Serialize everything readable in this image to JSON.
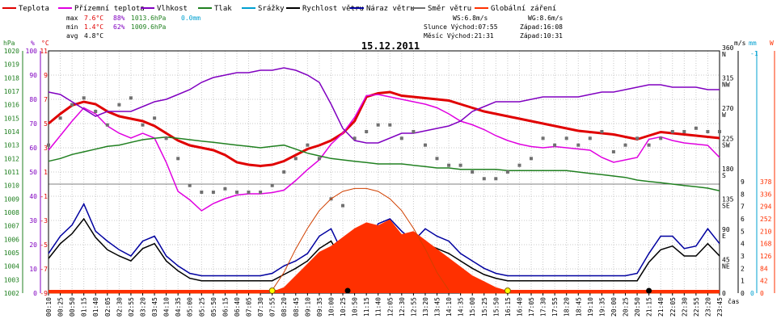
{
  "colors": {
    "teplota": "#e00000",
    "pocitova": "#e000e0",
    "vlhkost": "#8000c0",
    "tlak": "#208020",
    "srazky": "#00a0d0",
    "rychlost": "#000000",
    "naraz": "#0000a0",
    "smer": "#707070",
    "zareni": "#ff3000",
    "grid": "#c8c8c8",
    "frame": "#000000"
  },
  "legend": [
    {
      "key": "teplota",
      "label": "Teplota"
    },
    {
      "key": "pocitova",
      "label": "Přízemní teplota"
    },
    {
      "key": "vlhkost",
      "label": "Vlhkost"
    },
    {
      "key": "tlak",
      "label": "Tlak"
    },
    {
      "key": "srazky",
      "label": "Srážky"
    },
    {
      "key": "rychlost",
      "label": "Rychlost větru"
    },
    {
      "key": "naraz",
      "label": "Náraz větru"
    },
    {
      "key": "smer",
      "label": "Směr větru"
    },
    {
      "key": "zareni",
      "label": "Globální záření"
    }
  ],
  "stats": {
    "max_label": "max",
    "max_temp": "7.6°C",
    "max_hum": "88%",
    "max_press": "1013.6hPa",
    "max_rain": "0.0mm",
    "min_label": "min",
    "min_temp": "1.4°C",
    "min_hum": "62%",
    "min_press": "1009.6hPa",
    "avg_label": "avg",
    "avg_temp": "4.8°C",
    "ws": "WS:6.8m/s",
    "wg": "WG:8.6m/s",
    "slunce": "Slunce Východ:07:55",
    "slunce_zapad": "Západ:16:08",
    "mesic": "Měsíc  Východ:21:31",
    "mesic_zapad": "Západ:10:31"
  },
  "chart_data": {
    "type": "line",
    "title": "15.12.2011",
    "xlabel": "čas",
    "x_ticks": [
      "00:10",
      "00:25",
      "00:50",
      "01:15",
      "01:40",
      "02:05",
      "02:30",
      "02:55",
      "03:20",
      "03:45",
      "04:10",
      "04:35",
      "05:00",
      "05:25",
      "05:50",
      "06:15",
      "06:40",
      "07:05",
      "07:30",
      "07:55",
      "08:20",
      "08:45",
      "09:10",
      "09:35",
      "10:00",
      "10:25",
      "10:50",
      "11:15",
      "11:40",
      "12:05",
      "12:30",
      "12:55",
      "13:20",
      "13:45",
      "14:10",
      "14:35",
      "15:00",
      "15:25",
      "15:50",
      "16:15",
      "16:40",
      "17:05",
      "17:30",
      "17:55",
      "18:20",
      "18:45",
      "19:10",
      "19:35",
      "20:00",
      "20:25",
      "20:50",
      "21:15",
      "21:40",
      "22:05",
      "22:30",
      "22:55",
      "23:20",
      "23:45"
    ],
    "axes": {
      "hpa": {
        "label": "hPa",
        "range": [
          1002,
          1020
        ],
        "ticks": [
          "1002",
          "1003",
          "1004",
          "1005",
          "1006",
          "1007",
          "1008",
          "1009",
          "1010",
          "1011",
          "1012",
          "1013",
          "1014",
          "1015",
          "1016",
          "1017",
          "1018",
          "1019",
          "1020"
        ]
      },
      "pct": {
        "label": "%",
        "range": [
          0,
          100
        ],
        "ticks": [
          "0",
          "10",
          "20",
          "30",
          "40",
          "50",
          "60",
          "70",
          "80",
          "90",
          "100"
        ]
      },
      "temp": {
        "label": "°C",
        "range": [
          -9,
          11
        ],
        "ticks": [
          "-9",
          "-7",
          "-5",
          "-3",
          "-1",
          "1",
          "3",
          "5",
          "7",
          "9",
          "11"
        ]
      },
      "wind_dir": {
        "label": "m/s",
        "ticks": [
          "0",
          "45\nNE",
          "90\nE",
          "135\nSE",
          "180\nS",
          "225\nSW",
          "270\nW",
          "315\nNW",
          "360\nN"
        ]
      },
      "wind_ms": {
        "ticks": [
          "0",
          "1",
          "2",
          "3",
          "4",
          "5",
          "6",
          "7",
          "8",
          "9"
        ]
      },
      "rain": {
        "label": "mm",
        "ticks": [
          "0",
          "-1"
        ]
      },
      "solar": {
        "label": "W",
        "ticks": [
          "0",
          "42",
          "84",
          "126",
          "168",
          "210",
          "252",
          "294",
          "336",
          "378"
        ]
      }
    },
    "series": [
      {
        "key": "teplota",
        "name": "Teplota",
        "axis": "temp",
        "values": [
          5.0,
          5.8,
          6.5,
          6.8,
          6.6,
          6.0,
          5.6,
          5.4,
          5.2,
          4.8,
          4.2,
          3.6,
          3.2,
          3.0,
          2.8,
          2.4,
          1.8,
          1.6,
          1.5,
          1.6,
          1.9,
          2.4,
          2.9,
          3.2,
          3.6,
          4.2,
          5.2,
          7.2,
          7.5,
          7.6,
          7.3,
          7.2,
          7.1,
          7.0,
          6.9,
          6.6,
          6.3,
          6.0,
          5.8,
          5.6,
          5.4,
          5.2,
          5.0,
          4.8,
          4.6,
          4.4,
          4.3,
          4.2,
          4.1,
          3.9,
          3.7,
          4.0,
          4.3,
          4.2,
          4.1,
          4.0,
          3.9,
          3.8
        ]
      },
      {
        "key": "pocitova",
        "name": "Přízemní teplota",
        "axis": "temp",
        "values": [
          2.8,
          4.0,
          5.2,
          6.3,
          5.8,
          4.8,
          4.2,
          3.8,
          4.2,
          3.8,
          1.8,
          -0.6,
          -1.3,
          -2.2,
          -1.6,
          -1.2,
          -0.9,
          -0.8,
          -0.8,
          -0.7,
          -0.5,
          0.3,
          1.2,
          2.0,
          3.3,
          4.2,
          5.5,
          7.3,
          7.4,
          7.2,
          7.0,
          6.8,
          6.6,
          6.3,
          5.8,
          5.2,
          4.9,
          4.5,
          4.0,
          3.6,
          3.3,
          3.1,
          3.0,
          3.1,
          3.0,
          2.9,
          2.8,
          2.2,
          1.8,
          2.0,
          2.2,
          3.7,
          3.9,
          3.6,
          3.4,
          3.3,
          3.2,
          2.2
        ]
      },
      {
        "key": "vlhkost",
        "name": "Vlhkost",
        "axis": "pct",
        "values": [
          83,
          82,
          79,
          76,
          73,
          75,
          75,
          75,
          77,
          79,
          80,
          82,
          84,
          87,
          89,
          90,
          91,
          91,
          92,
          92,
          93,
          92,
          90,
          87,
          78,
          68,
          63,
          62,
          62,
          64,
          66,
          66,
          67,
          68,
          69,
          71,
          75,
          77,
          79,
          79,
          79,
          80,
          81,
          81,
          81,
          81,
          82,
          83,
          83,
          84,
          85,
          86,
          86,
          85,
          85,
          85,
          84,
          84
        ]
      },
      {
        "key": "tlak",
        "name": "Tlak",
        "axis": "hpa",
        "values": [
          1011.8,
          1012.0,
          1012.3,
          1012.5,
          1012.7,
          1012.9,
          1013.0,
          1013.2,
          1013.4,
          1013.5,
          1013.6,
          1013.5,
          1013.4,
          1013.3,
          1013.2,
          1013.1,
          1013.0,
          1012.9,
          1012.8,
          1012.9,
          1013.0,
          1012.7,
          1012.4,
          1012.2,
          1012.0,
          1011.9,
          1011.8,
          1011.7,
          1011.6,
          1011.6,
          1011.6,
          1011.5,
          1011.4,
          1011.3,
          1011.3,
          1011.2,
          1011.2,
          1011.2,
          1011.2,
          1011.1,
          1011.1,
          1011.1,
          1011.1,
          1011.1,
          1011.1,
          1011.0,
          1010.9,
          1010.8,
          1010.7,
          1010.6,
          1010.4,
          1010.3,
          1010.2,
          1010.1,
          1010.0,
          1009.9,
          1009.8,
          1009.6
        ]
      },
      {
        "key": "rychlost",
        "name": "Rychlost větru",
        "axis": "wind_ms",
        "values": [
          2.8,
          4.0,
          4.8,
          6.0,
          4.5,
          3.5,
          3.0,
          2.6,
          3.6,
          4.0,
          2.6,
          1.8,
          1.2,
          1.0,
          1.0,
          1.0,
          1.0,
          1.0,
          1.0,
          1.0,
          1.5,
          2.0,
          2.6,
          3.6,
          4.2,
          2.6,
          2.0,
          3.0,
          4.5,
          5.0,
          4.2,
          3.6,
          4.0,
          3.6,
          3.2,
          2.6,
          2.0,
          1.5,
          1.2,
          1.0,
          1.0,
          1.0,
          1.0,
          1.0,
          1.0,
          1.0,
          1.0,
          1.0,
          1.0,
          1.0,
          1.0,
          2.5,
          3.5,
          3.8,
          3.0,
          3.0,
          4.0,
          3.0
        ]
      },
      {
        "key": "naraz",
        "name": "Náraz větru",
        "axis": "wind_ms",
        "values": [
          3.2,
          4.6,
          5.5,
          7.2,
          5.0,
          4.2,
          3.5,
          3.0,
          4.2,
          4.6,
          3.0,
          2.2,
          1.6,
          1.4,
          1.4,
          1.4,
          1.4,
          1.4,
          1.4,
          1.6,
          2.2,
          2.6,
          3.2,
          4.6,
          5.2,
          3.2,
          2.6,
          3.6,
          5.6,
          6.0,
          5.0,
          4.2,
          5.2,
          4.6,
          4.2,
          3.2,
          2.6,
          2.0,
          1.6,
          1.4,
          1.4,
          1.4,
          1.4,
          1.4,
          1.4,
          1.4,
          1.4,
          1.4,
          1.4,
          1.4,
          1.6,
          3.2,
          4.6,
          4.6,
          3.6,
          3.8,
          5.2,
          4.0
        ]
      },
      {
        "key": "smer",
        "name": "Směr větru",
        "axis": "wind_dir",
        "values": [
          220,
          260,
          280,
          290,
          270,
          250,
          280,
          290,
          250,
          260,
          230,
          200,
          160,
          150,
          150,
          155,
          150,
          150,
          150,
          160,
          180,
          200,
          220,
          200,
          140,
          130,
          230,
          240,
          250,
          250,
          230,
          240,
          220,
          200,
          190,
          190,
          180,
          170,
          170,
          180,
          190,
          200,
          230,
          220,
          230,
          220,
          230,
          240,
          210,
          220,
          230,
          220,
          230,
          240,
          240,
          245,
          240,
          240
        ]
      },
      {
        "key": "zareni",
        "name": "Globální záření",
        "axis": "solar",
        "values": [
          0,
          0,
          0,
          0,
          0,
          0,
          0,
          0,
          0,
          0,
          0,
          0,
          0,
          0,
          0,
          0,
          0,
          0,
          0,
          5,
          20,
          60,
          100,
          140,
          160,
          190,
          220,
          240,
          230,
          250,
          200,
          210,
          180,
          150,
          120,
          90,
          60,
          40,
          20,
          8,
          0,
          0,
          0,
          0,
          0,
          0,
          0,
          0,
          0,
          0,
          0,
          0,
          0,
          0,
          0,
          0,
          0,
          0
        ]
      },
      {
        "key": "sun_curve",
        "name": "",
        "axis": "solar",
        "values": [
          0,
          0,
          0,
          0,
          0,
          0,
          0,
          0,
          0,
          0,
          0,
          0,
          0,
          0,
          0,
          0,
          0,
          0,
          0,
          10,
          70,
          150,
          220,
          280,
          320,
          345,
          355,
          355,
          345,
          320,
          280,
          220,
          150,
          70,
          10,
          0,
          0,
          0,
          0,
          0,
          0,
          0,
          0,
          0,
          0,
          0,
          0,
          0,
          0,
          0,
          0,
          0,
          0,
          0,
          0,
          0,
          0,
          0
        ]
      }
    ],
    "grid": true
  }
}
